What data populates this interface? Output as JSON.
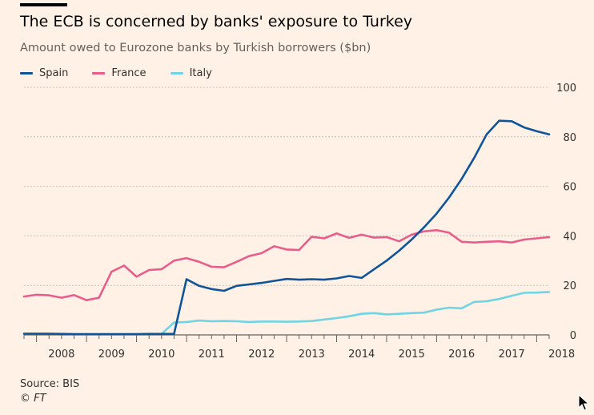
{
  "header": {
    "title": "The ECB is concerned by banks' exposure to Turkey",
    "subtitle": "Amount owed to Eurozone banks by Turkish borrowers ($bn)"
  },
  "footer": {
    "source": "Source: BIS",
    "credit": "© FT"
  },
  "cursor": {
    "icon": "mouse-pointer-icon"
  },
  "chart_data": {
    "type": "line",
    "title": "The ECB is concerned by banks' exposure to Turkey",
    "subtitle": "Amount owed to Eurozone banks by Turkish borrowers ($bn)",
    "xlabel": "",
    "ylabel": "",
    "x_tick_labels": [
      "2008",
      "2009",
      "2010",
      "2011",
      "2012",
      "2013",
      "2014",
      "2015",
      "2016",
      "2017",
      "2018"
    ],
    "y_ticks": [
      0,
      20,
      40,
      60,
      80,
      100
    ],
    "y_tick_labels": [
      "0",
      "20",
      "40",
      "60",
      "80",
      "100"
    ],
    "ylim": [
      0,
      100
    ],
    "xlim": [
      2007.75,
      2018.25
    ],
    "grid": "horizontal",
    "y_axis_position": "right",
    "legend_position": "top-left",
    "x": [
      2007.75,
      2008.0,
      2008.25,
      2008.5,
      2008.75,
      2009.0,
      2009.25,
      2009.5,
      2009.75,
      2010.0,
      2010.25,
      2010.5,
      2010.75,
      2011.0,
      2011.25,
      2011.5,
      2011.75,
      2012.0,
      2012.25,
      2012.5,
      2012.75,
      2013.0,
      2013.25,
      2013.5,
      2013.75,
      2014.0,
      2014.25,
      2014.5,
      2014.75,
      2015.0,
      2015.25,
      2015.5,
      2015.75,
      2016.0,
      2016.25,
      2016.5,
      2016.75,
      2017.0,
      2017.25,
      2017.5,
      2017.75,
      2018.0,
      2018.25
    ],
    "series": [
      {
        "name": "Spain",
        "color": "#0f5499",
        "values": [
          0.5,
          0.5,
          0.5,
          0.4,
          0.3,
          0.3,
          0.3,
          0.3,
          0.3,
          0.3,
          0.4,
          0.4,
          0.4,
          22.5,
          19.8,
          18.5,
          17.8,
          19.8,
          20.4,
          21.0,
          21.8,
          22.6,
          22.3,
          22.5,
          22.3,
          22.8,
          23.8,
          23.0,
          26.5,
          30.0,
          34.0,
          38.5,
          43.5,
          49.0,
          55.5,
          63.0,
          71.5,
          81.0,
          86.5,
          86.3,
          83.8,
          82.3,
          81.0
        ]
      },
      {
        "name": "France",
        "color": "#e95d8c",
        "values": [
          15.5,
          16.2,
          16.0,
          15.0,
          16.1,
          14.0,
          15.0,
          25.5,
          28.0,
          23.5,
          26.2,
          26.5,
          30.0,
          31.0,
          29.5,
          27.5,
          27.3,
          29.5,
          31.8,
          33.0,
          35.8,
          34.5,
          34.3,
          39.6,
          39.0,
          41.0,
          39.2,
          40.5,
          39.3,
          39.5,
          37.8,
          40.5,
          41.8,
          42.3,
          41.3,
          37.6,
          37.3,
          37.6,
          37.8,
          37.3,
          38.5,
          39.0,
          39.5
        ]
      },
      {
        "name": "Italy",
        "color": "#71d4e4",
        "values": [
          null,
          null,
          null,
          null,
          null,
          null,
          null,
          null,
          null,
          null,
          null,
          0.4,
          5.0,
          5.2,
          5.8,
          5.5,
          5.6,
          5.5,
          5.2,
          5.4,
          5.4,
          5.3,
          5.4,
          5.6,
          6.2,
          6.8,
          7.5,
          8.5,
          8.8,
          8.3,
          8.5,
          8.8,
          9.0,
          10.2,
          11.0,
          10.7,
          13.3,
          13.6,
          14.5,
          15.8,
          17.0,
          17.1,
          17.3
        ]
      }
    ]
  }
}
